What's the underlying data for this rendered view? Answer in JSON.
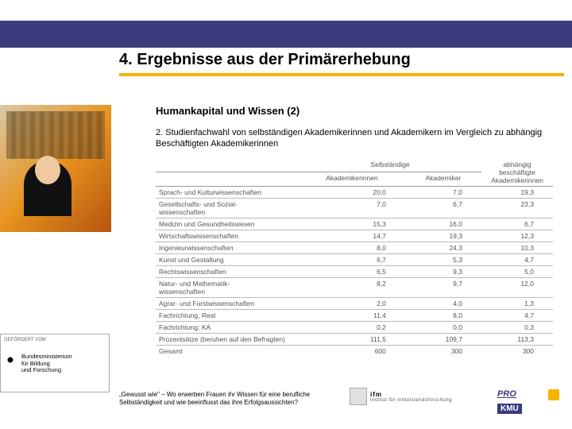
{
  "colors": {
    "navy": "#3b3b7e",
    "yellow": "#f5b400",
    "text": "#000000",
    "muted": "#555555"
  },
  "title": "4. Ergebnisse aus der Primärerhebung",
  "subheading": "Humankapital und Wissen (2)",
  "body": "2. Studienfachwahl von selbständigen Akademikerinnen und Akademikern im Vergleich zu abhängig Beschäftigten Akademikerinnen",
  "table": {
    "group1": "Selbständige",
    "col1": "Akademikerinnen",
    "col2": "Akademiker",
    "col3": "abhängig beschäftigte Akademikerinnen",
    "rows": [
      {
        "label": "Sprach- und Kulturwissenschaften",
        "a": "20,0",
        "b": "7,0",
        "c": "19,3"
      },
      {
        "label": "Gesellschafts- und Sozial-\nwissenschaften",
        "a": "7,0",
        "b": "6,7",
        "c": "23,3"
      },
      {
        "label": "Medizin und Gesundheitswesen",
        "a": "15,3",
        "b": "16,0",
        "c": "6,7"
      },
      {
        "label": "Wirtschaftswissenschaften",
        "a": "14,7",
        "b": "19,3",
        "c": "12,3"
      },
      {
        "label": "Ingenieurwissenschaften",
        "a": "8,0",
        "b": "24,3",
        "c": "10,3"
      },
      {
        "label": "Kunst und Gestaltung",
        "a": "6,7",
        "b": "5,3",
        "c": "4,7"
      },
      {
        "label": "Rechtswissenschaften",
        "a": "6,5",
        "b": "9,3",
        "c": "5,0"
      },
      {
        "label": "Natur- und Mathematik-\nwissenschaften",
        "a": "8,2",
        "b": "9,7",
        "c": "12,0"
      },
      {
        "label": "Agrar- und Forstwissenschaften",
        "a": "2,0",
        "b": "4,0",
        "c": "1,3"
      },
      {
        "label": "Fachrichtung, Rest",
        "a": "11,4",
        "b": "8,0",
        "c": "4,7"
      },
      {
        "label": "Fachrichtung: KA",
        "a": "0,2",
        "b": "0,0",
        "c": "0,3"
      }
    ],
    "sum1": {
      "label": "Prozentsätze (beruhen auf den Befragten)",
      "a": "111,5",
      "b": "109,7",
      "c": "113,3"
    },
    "sum2": {
      "label": "Gesamt",
      "a": "600",
      "b": "300",
      "c": "300"
    }
  },
  "sponsor": {
    "top": "GEFÖRDERT VOM",
    "name": "Bundesministerium\nfür Bildung\nund Forschung"
  },
  "footer": "„Gewusst wie\" – Wo erwerben Frauen ihr Wissen für eine berufliche Selbständigkeit und wie beeinflusst das ihre Erfolgsaussichten?",
  "ifm": {
    "label": "ifm",
    "sub": "institut für mittelstandsforschung"
  },
  "prokmu": {
    "pro": "PRO",
    "kmu": "KMU"
  }
}
